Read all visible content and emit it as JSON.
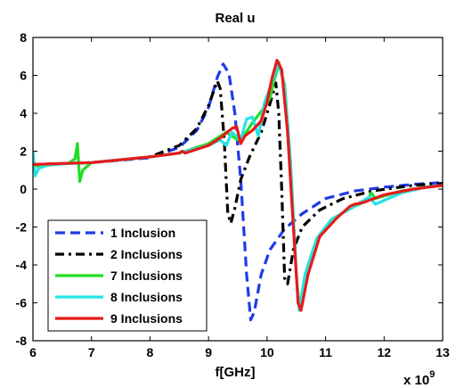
{
  "chart_data": {
    "type": "line",
    "title": "Real u",
    "xlabel": "f[GHz]",
    "ylabel": "",
    "x_exponent_base": "x 10",
    "x_exponent_power": "9",
    "xlim": [
      6,
      13
    ],
    "ylim": [
      -8,
      8
    ],
    "xticks": [
      "6",
      "7",
      "8",
      "9",
      "10",
      "11",
      "12",
      "13"
    ],
    "yticks": [
      "8",
      "6",
      "4",
      "2",
      "0",
      "-2",
      "-4",
      "-6",
      "-8"
    ],
    "grid": false,
    "legend_position": "bottom-left",
    "series": [
      {
        "name": "1 Inclusion",
        "color": "#1f3be6",
        "dash": "dashed",
        "points": [
          [
            6,
            1.3
          ],
          [
            7,
            1.4
          ],
          [
            8,
            1.65
          ],
          [
            8.5,
            2.2
          ],
          [
            8.8,
            3.1
          ],
          [
            9.0,
            4.3
          ],
          [
            9.15,
            5.9
          ],
          [
            9.25,
            6.6
          ],
          [
            9.35,
            6.1
          ],
          [
            9.45,
            4.0
          ],
          [
            9.55,
            0.5
          ],
          [
            9.65,
            -4.5
          ],
          [
            9.72,
            -6.9
          ],
          [
            9.78,
            -6.5
          ],
          [
            9.9,
            -4.5
          ],
          [
            10.05,
            -3.2
          ],
          [
            10.3,
            -2.1
          ],
          [
            10.6,
            -1.3
          ],
          [
            11.0,
            -0.5
          ],
          [
            11.5,
            -0.1
          ],
          [
            12.0,
            0.1
          ],
          [
            12.5,
            0.25
          ],
          [
            13,
            0.35
          ]
        ]
      },
      {
        "name": "2 Inclusions",
        "color": "#000000",
        "dash": "dashdot",
        "points": [
          [
            6,
            1.3
          ],
          [
            7,
            1.4
          ],
          [
            8,
            1.7
          ],
          [
            8.5,
            2.3
          ],
          [
            8.8,
            3.2
          ],
          [
            9.0,
            4.4
          ],
          [
            9.15,
            5.7
          ],
          [
            9.2,
            5.3
          ],
          [
            9.27,
            2.5
          ],
          [
            9.33,
            -1.3
          ],
          [
            9.38,
            -1.8
          ],
          [
            9.45,
            -1.0
          ],
          [
            9.55,
            0.5
          ],
          [
            9.7,
            1.7
          ],
          [
            9.9,
            3.0
          ],
          [
            10.05,
            4.5
          ],
          [
            10.15,
            5.6
          ],
          [
            10.2,
            4.0
          ],
          [
            10.25,
            0.0
          ],
          [
            10.3,
            -4.7
          ],
          [
            10.35,
            -5.0
          ],
          [
            10.45,
            -3.2
          ],
          [
            10.6,
            -2.0
          ],
          [
            10.9,
            -1.1
          ],
          [
            11.3,
            -0.5
          ],
          [
            11.8,
            -0.1
          ],
          [
            12.5,
            0.2
          ],
          [
            13,
            0.3
          ]
        ]
      },
      {
        "name": "7 Inclusions",
        "color": "#22dd22",
        "dash": "solid",
        "points": [
          [
            6,
            1.2
          ],
          [
            6.6,
            1.35
          ],
          [
            6.72,
            1.6
          ],
          [
            6.76,
            2.4
          ],
          [
            6.8,
            0.4
          ],
          [
            6.85,
            1.0
          ],
          [
            7.0,
            1.4
          ],
          [
            8.0,
            1.7
          ],
          [
            8.5,
            1.9
          ],
          [
            9.0,
            2.4
          ],
          [
            9.3,
            3.0
          ],
          [
            9.5,
            2.6
          ],
          [
            9.6,
            2.8
          ],
          [
            9.75,
            3.5
          ],
          [
            9.95,
            4.3
          ],
          [
            10.05,
            4.8
          ],
          [
            10.1,
            5.5
          ],
          [
            10.2,
            6.6
          ],
          [
            10.3,
            5.5
          ],
          [
            10.4,
            1.5
          ],
          [
            10.5,
            -4.5
          ],
          [
            10.55,
            -6.3
          ],
          [
            10.65,
            -4.5
          ],
          [
            10.85,
            -2.6
          ],
          [
            11.1,
            -1.6
          ],
          [
            11.5,
            -0.9
          ],
          [
            11.72,
            -0.6
          ],
          [
            11.78,
            -0.2
          ],
          [
            11.85,
            -0.5
          ],
          [
            12.3,
            -0.1
          ],
          [
            12.7,
            0.1
          ],
          [
            13,
            0.2
          ]
        ]
      },
      {
        "name": "8 Inclusions",
        "color": "#22e5e5",
        "dash": "solid",
        "points": [
          [
            6,
            2.0
          ],
          [
            6.04,
            0.7
          ],
          [
            6.1,
            1.1
          ],
          [
            6.3,
            1.3
          ],
          [
            7,
            1.4
          ],
          [
            8,
            1.7
          ],
          [
            8.5,
            1.9
          ],
          [
            9.0,
            2.3
          ],
          [
            9.2,
            2.6
          ],
          [
            9.3,
            2.3
          ],
          [
            9.4,
            3.0
          ],
          [
            9.55,
            2.6
          ],
          [
            9.65,
            3.7
          ],
          [
            9.75,
            3.8
          ],
          [
            9.85,
            2.8
          ],
          [
            9.95,
            4.5
          ],
          [
            10.1,
            5.8
          ],
          [
            10.2,
            6.7
          ],
          [
            10.3,
            5.4
          ],
          [
            10.4,
            1.5
          ],
          [
            10.5,
            -4.5
          ],
          [
            10.55,
            -6.4
          ],
          [
            10.65,
            -4.5
          ],
          [
            10.85,
            -2.6
          ],
          [
            11.1,
            -1.6
          ],
          [
            11.5,
            -0.9
          ],
          [
            11.75,
            -0.4
          ],
          [
            11.85,
            -0.8
          ],
          [
            12.3,
            -0.2
          ],
          [
            12.7,
            0.1
          ],
          [
            13,
            0.2
          ]
        ]
      },
      {
        "name": "9 Inclusions",
        "color": "#e81a1a",
        "dash": "solid",
        "points": [
          [
            6,
            1.3
          ],
          [
            6.5,
            1.35
          ],
          [
            7,
            1.4
          ],
          [
            8,
            1.7
          ],
          [
            8.5,
            1.9
          ],
          [
            8.55,
            2.0
          ],
          [
            8.6,
            1.9
          ],
          [
            9.0,
            2.3
          ],
          [
            9.2,
            2.7
          ],
          [
            9.4,
            3.2
          ],
          [
            9.48,
            3.3
          ],
          [
            9.55,
            2.4
          ],
          [
            9.62,
            2.8
          ],
          [
            9.75,
            3.1
          ],
          [
            9.9,
            3.6
          ],
          [
            10.0,
            4.6
          ],
          [
            10.08,
            5.8
          ],
          [
            10.17,
            6.8
          ],
          [
            10.25,
            6.3
          ],
          [
            10.35,
            3.0
          ],
          [
            10.45,
            -2.0
          ],
          [
            10.53,
            -6.0
          ],
          [
            10.58,
            -6.4
          ],
          [
            10.7,
            -4.5
          ],
          [
            10.9,
            -2.5
          ],
          [
            11.2,
            -1.5
          ],
          [
            11.42,
            -0.9
          ],
          [
            11.5,
            -0.8
          ],
          [
            11.65,
            -0.7
          ],
          [
            12.0,
            -0.3
          ],
          [
            12.5,
            0.0
          ],
          [
            13,
            0.2
          ]
        ]
      }
    ]
  }
}
